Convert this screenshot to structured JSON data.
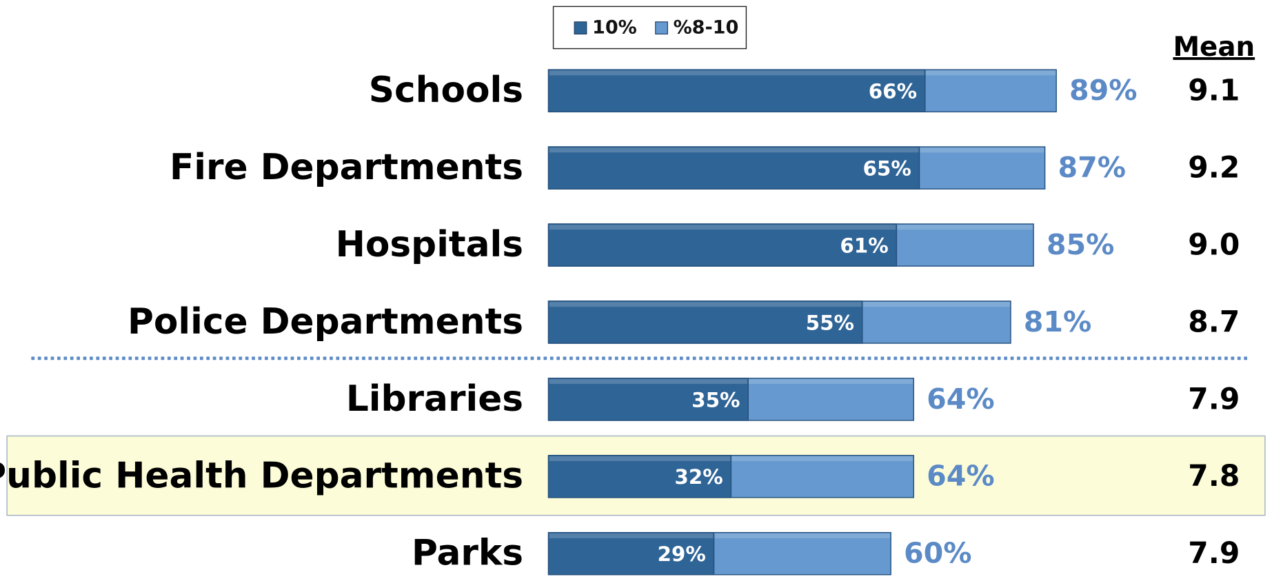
{
  "chart_data": {
    "type": "bar",
    "orientation": "horizontal",
    "overlap": true,
    "categories": [
      "Schools",
      "Fire Departments",
      "Hospitals",
      "Police Departments",
      "Libraries",
      "Public Health Departments",
      "Parks"
    ],
    "series": [
      {
        "name": "%8-10",
        "color": "#6699cf",
        "values": [
          89,
          87,
          85,
          81,
          64,
          64,
          60
        ],
        "value_labels": [
          "89%",
          "87%",
          "85%",
          "81%",
          "64%",
          "64%",
          "60%"
        ]
      },
      {
        "name": "10%",
        "color": "#2f6496",
        "values": [
          66,
          65,
          61,
          55,
          35,
          32,
          29
        ],
        "value_labels": [
          "66%",
          "65%",
          "61%",
          "55%",
          "35%",
          "32%",
          "29%"
        ]
      }
    ],
    "xlim": [
      0,
      100
    ],
    "legend_order": [
      1,
      0
    ],
    "legend": "top",
    "mean": {
      "title": "Mean",
      "values": [
        "9.1",
        "9.2",
        "9.0",
        "8.7",
        "7.9",
        "7.8",
        "7.9"
      ]
    },
    "divider_after": 3,
    "highlight_index": 5
  }
}
